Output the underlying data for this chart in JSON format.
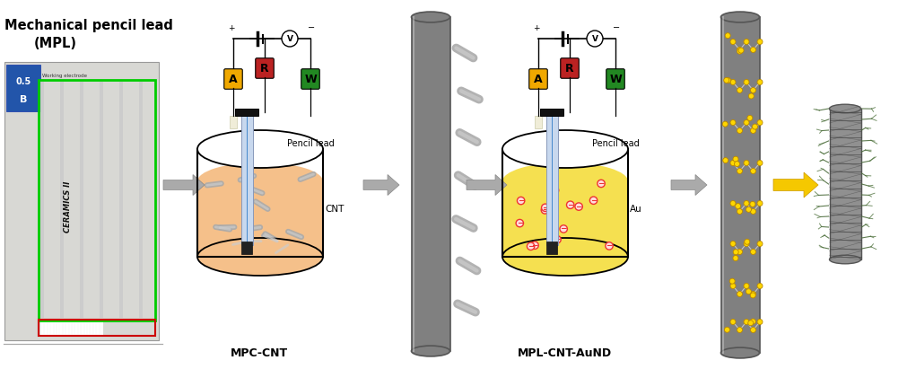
{
  "title_left1": "Mechanical pencil lead",
  "title_left2": "(MPL)",
  "label_mpc_cnt": "MPC-CNT",
  "label_mpl_cnt_aund": "MPL-CNT-AuND",
  "label_pencil_lead1": "Pencil lead",
  "label_pencil_lead2": "Pencil lead",
  "label_cnt": "CNT",
  "label_au": "Au",
  "electrode_A_color": "#F0A800",
  "electrode_R_color": "#BB2222",
  "electrode_W_color": "#228822",
  "beaker1_fill": "#F5C08A",
  "beaker2_fill": "#F5E050",
  "bg_color": "#FFFFFF",
  "pencil_body_color": "#C8D8EE",
  "pencil_edge_color": "#8899BB",
  "pencil_line_color": "#4488CC",
  "cnt_particle_color": "#999999",
  "tube_body_color": "#888888",
  "tube_edge_color": "#555555",
  "gold_dot_color": "#FFD700",
  "gold_edge_color": "#BB8800",
  "au_particle_edge": "#EE3333",
  "arrow_gray": "#888888",
  "arrow_yellow": "#F5C800"
}
